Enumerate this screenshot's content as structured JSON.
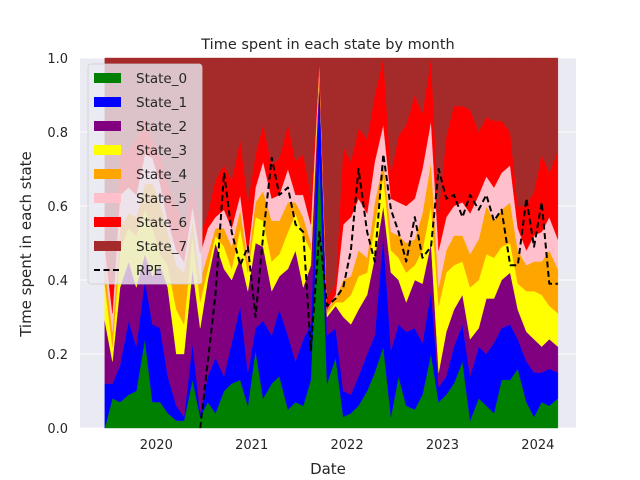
{
  "chart_data": {
    "type": "area",
    "stacked": true,
    "title": "Time spent in each state by month",
    "xlabel": "Date",
    "ylabel": "Time spent in each state",
    "ylim": [
      0,
      1.0
    ],
    "xlim": [
      2019.2,
      2024.4
    ],
    "grid": true,
    "legend_position": "top-left",
    "x_ticks": [
      2020,
      2021,
      2022,
      2023,
      2024
    ],
    "x_tick_labels": [
      "2020",
      "2021",
      "2022",
      "2023",
      "2024"
    ],
    "y_ticks": [
      0.0,
      0.2,
      0.4,
      0.6,
      0.8,
      1.0
    ],
    "y_tick_labels": [
      "0.0",
      "0.2",
      "0.4",
      "0.6",
      "0.8",
      "1.0"
    ],
    "x": [
      2019.46,
      2019.54,
      2019.62,
      2019.71,
      2019.79,
      2019.88,
      2019.96,
      2020.04,
      2020.12,
      2020.21,
      2020.29,
      2020.38,
      2020.46,
      2020.54,
      2020.62,
      2020.71,
      2020.79,
      2020.88,
      2020.96,
      2021.04,
      2021.12,
      2021.21,
      2021.29,
      2021.38,
      2021.46,
      2021.54,
      2021.62,
      2021.71,
      2021.79,
      2021.88,
      2021.96,
      2022.04,
      2022.12,
      2022.21,
      2022.29,
      2022.38,
      2022.46,
      2022.54,
      2022.62,
      2022.71,
      2022.79,
      2022.88,
      2022.96,
      2023.04,
      2023.12,
      2023.21,
      2023.29,
      2023.38,
      2023.46,
      2023.54,
      2023.62,
      2023.71,
      2023.79,
      2023.88,
      2023.96,
      2024.04,
      2024.12,
      2024.21
    ],
    "series": [
      {
        "name": "State_0",
        "color": "#008000",
        "values": [
          0.0,
          0.08,
          0.07,
          0.09,
          0.1,
          0.24,
          0.07,
          0.07,
          0.04,
          0.02,
          0.02,
          0.13,
          0.03,
          0.07,
          0.04,
          0.1,
          0.12,
          0.13,
          0.06,
          0.21,
          0.08,
          0.12,
          0.14,
          0.05,
          0.07,
          0.06,
          0.13,
          0.74,
          0.12,
          0.19,
          0.03,
          0.04,
          0.06,
          0.1,
          0.15,
          0.22,
          0.03,
          0.14,
          0.06,
          0.05,
          0.09,
          0.2,
          0.07,
          0.09,
          0.12,
          0.18,
          0.02,
          0.08,
          0.06,
          0.04,
          0.13,
          0.13,
          0.16,
          0.07,
          0.03,
          0.07,
          0.06,
          0.08
        ]
      },
      {
        "name": "State_1",
        "color": "#0000ff",
        "values": [
          0.12,
          0.04,
          0.1,
          0.2,
          0.12,
          0.16,
          0.21,
          0.2,
          0.1,
          0.04,
          0.01,
          0.1,
          0.01,
          0.07,
          0.15,
          0.04,
          0.11,
          0.2,
          0.09,
          0.06,
          0.21,
          0.13,
          0.18,
          0.2,
          0.11,
          0.18,
          0.15,
          0.19,
          0.13,
          0.08,
          0.07,
          0.05,
          0.08,
          0.1,
          0.1,
          0.3,
          0.18,
          0.14,
          0.2,
          0.22,
          0.14,
          0.17,
          0.04,
          0.05,
          0.1,
          0.1,
          0.12,
          0.14,
          0.14,
          0.19,
          0.14,
          0.15,
          0.08,
          0.11,
          0.12,
          0.08,
          0.1,
          0.07
        ]
      },
      {
        "name": "State_2",
        "color": "#800080",
        "values": [
          0.17,
          0.06,
          0.21,
          0.16,
          0.16,
          0.07,
          0.13,
          0.17,
          0.24,
          0.14,
          0.17,
          0.2,
          0.23,
          0.26,
          0.31,
          0.29,
          0.17,
          0.13,
          0.22,
          0.23,
          0.2,
          0.12,
          0.09,
          0.18,
          0.3,
          0.14,
          0.16,
          0.03,
          0.05,
          0.06,
          0.2,
          0.19,
          0.18,
          0.16,
          0.21,
          0.08,
          0.21,
          0.12,
          0.08,
          0.13,
          0.16,
          0.13,
          0.04,
          0.12,
          0.1,
          0.08,
          0.1,
          0.05,
          0.15,
          0.12,
          0.13,
          0.14,
          0.08,
          0.08,
          0.09,
          0.07,
          0.08,
          0.07
        ]
      },
      {
        "name": "State_3",
        "color": "#ffff00",
        "values": [
          0.1,
          0.04,
          0.1,
          0.09,
          0.14,
          0.12,
          0.13,
          0.03,
          0.06,
          0.12,
          0.08,
          0.09,
          0.07,
          0.03,
          0.02,
          0.06,
          0.03,
          0.08,
          0.05,
          0.07,
          0.07,
          0.08,
          0.06,
          0.1,
          0.1,
          0.14,
          0.04,
          0.01,
          0.01,
          0.01,
          0.04,
          0.08,
          0.09,
          0.06,
          0.09,
          0.08,
          0.06,
          0.06,
          0.08,
          0.04,
          0.09,
          0.1,
          0.18,
          0.16,
          0.12,
          0.09,
          0.14,
          0.13,
          0.12,
          0.11,
          0.09,
          0.08,
          0.07,
          0.11,
          0.13,
          0.14,
          0.09,
          0.09
        ]
      },
      {
        "name": "State_4",
        "color": "#ffa500",
        "values": [
          0.05,
          0.04,
          0.06,
          0.04,
          0.05,
          0.07,
          0.12,
          0.14,
          0.09,
          0.12,
          0.14,
          0.04,
          0.06,
          0.04,
          0.02,
          0.05,
          0.06,
          0.05,
          0.03,
          0.04,
          0.08,
          0.11,
          0.09,
          0.08,
          0.03,
          0.05,
          0.02,
          0.01,
          0.01,
          0.01,
          0.06,
          0.05,
          0.07,
          0.04,
          0.06,
          0.04,
          0.05,
          0.06,
          0.08,
          0.07,
          0.1,
          0.12,
          0.05,
          0.06,
          0.08,
          0.07,
          0.09,
          0.11,
          0.13,
          0.1,
          0.1,
          0.11,
          0.09,
          0.07,
          0.08,
          0.09,
          0.15,
          0.12
        ]
      },
      {
        "name": "State_5",
        "color": "#ffc0cb",
        "values": [
          0.05,
          0.05,
          0.09,
          0.07,
          0.06,
          0.08,
          0.07,
          0.05,
          0.03,
          0.04,
          0.03,
          0.04,
          0.07,
          0.07,
          0.03,
          0.05,
          0.05,
          0.04,
          0.02,
          0.04,
          0.08,
          0.06,
          0.07,
          0.09,
          0.02,
          0.06,
          0.05,
          0.01,
          0.0,
          0.01,
          0.15,
          0.16,
          0.14,
          0.12,
          0.11,
          0.1,
          0.09,
          0.09,
          0.1,
          0.11,
          0.12,
          0.11,
          0.1,
          0.09,
          0.08,
          0.09,
          0.11,
          0.12,
          0.08,
          0.09,
          0.1,
          0.1,
          0.06,
          0.04,
          0.07,
          0.08,
          0.09,
          0.08
        ]
      },
      {
        "name": "State_6",
        "color": "#ff0000",
        "values": [
          0.1,
          0.08,
          0.12,
          0.1,
          0.15,
          0.1,
          0.05,
          0.08,
          0.1,
          0.12,
          0.09,
          0.06,
          0.05,
          0.04,
          0.1,
          0.12,
          0.13,
          0.15,
          0.14,
          0.09,
          0.1,
          0.09,
          0.1,
          0.12,
          0.09,
          0.11,
          0.08,
          0.01,
          0.03,
          0.03,
          0.21,
          0.15,
          0.19,
          0.2,
          0.18,
          0.18,
          0.07,
          0.18,
          0.22,
          0.28,
          0.15,
          0.17,
          0.1,
          0.22,
          0.27,
          0.26,
          0.28,
          0.17,
          0.16,
          0.18,
          0.14,
          0.09,
          0.06,
          0.12,
          0.12,
          0.21,
          0.12,
          0.24
        ]
      },
      {
        "name": "State_7",
        "color": "#a52a2a",
        "values": [
          0.41,
          0.61,
          0.25,
          0.25,
          0.22,
          0.16,
          0.22,
          0.26,
          0.34,
          0.4,
          0.46,
          0.34,
          0.48,
          0.42,
          0.33,
          0.29,
          0.33,
          0.22,
          0.39,
          0.26,
          0.18,
          0.29,
          0.27,
          0.18,
          0.28,
          0.26,
          0.37,
          0.0,
          0.65,
          0.61,
          0.24,
          0.28,
          0.19,
          0.22,
          0.1,
          0.0,
          0.31,
          0.21,
          0.18,
          0.1,
          0.15,
          0.0,
          0.42,
          0.21,
          0.13,
          0.13,
          0.14,
          0.2,
          0.16,
          0.17,
          0.17,
          0.2,
          0.4,
          0.4,
          0.36,
          0.26,
          0.31,
          0.25
        ]
      }
    ],
    "overlay_line": {
      "name": "RPE",
      "style": "dashed",
      "color": "#000000",
      "x": [
        2020.46,
        2020.62,
        2020.71,
        2020.79,
        2020.88,
        2020.96,
        2021.04,
        2021.12,
        2021.21,
        2021.29,
        2021.38,
        2021.46,
        2021.54,
        2021.62,
        2021.71,
        2021.79,
        2021.88,
        2021.96,
        2022.04,
        2022.12,
        2022.21,
        2022.29,
        2022.38,
        2022.46,
        2022.54,
        2022.62,
        2022.71,
        2022.79,
        2022.88,
        2022.96,
        2023.04,
        2023.12,
        2023.21,
        2023.29,
        2023.38,
        2023.46,
        2023.54,
        2023.62,
        2023.71,
        2023.79,
        2023.88,
        2023.96,
        2024.04,
        2024.12,
        2024.21
      ],
      "values": [
        0.0,
        0.36,
        0.69,
        0.53,
        0.44,
        0.49,
        0.3,
        0.52,
        0.73,
        0.63,
        0.65,
        0.55,
        0.53,
        0.21,
        0.53,
        0.33,
        0.35,
        0.38,
        0.48,
        0.7,
        0.53,
        0.45,
        0.74,
        0.59,
        0.53,
        0.45,
        0.57,
        0.46,
        0.49,
        0.7,
        0.62,
        0.63,
        0.57,
        0.63,
        0.59,
        0.63,
        0.56,
        0.59,
        0.44,
        0.44,
        0.62,
        0.49,
        0.61,
        0.39,
        0.39
      ]
    }
  }
}
